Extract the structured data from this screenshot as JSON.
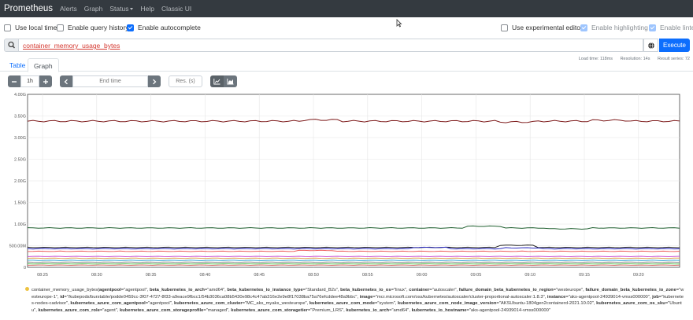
{
  "nav": {
    "brand": "Prometheus",
    "items": [
      "Alerts",
      "Graph",
      "Status",
      "Help",
      "Classic UI"
    ]
  },
  "options": {
    "use_local_time": {
      "label": "Use local time",
      "checked": false
    },
    "query_history": {
      "label": "Enable query history",
      "checked": false
    },
    "autocomplete": {
      "label": "Enable autocomplete",
      "checked": true
    },
    "experimental_editor": {
      "label": "Use experimental editor",
      "checked": false
    },
    "highlighting": {
      "label": "Enable highlighting",
      "checked": true
    },
    "linter": {
      "label": "Enable linter",
      "checked": true
    }
  },
  "query": {
    "value": "container_memory_usage_bytes",
    "execute_label": "Execute"
  },
  "stats": {
    "load_time": "Load time: 118ms",
    "resolution": "Resolution: 14s",
    "result_series": "Result series: 72"
  },
  "tabs": {
    "table": "Table",
    "graph": "Graph"
  },
  "controls": {
    "range": "1h",
    "end_time_placeholder": "End time",
    "resolution_placeholder": "Res. (s)"
  },
  "chart_data": {
    "type": "line",
    "x": [
      "08:25",
      "08:30",
      "08:35",
      "08:40",
      "08:45",
      "08:50",
      "08:55",
      "09:00",
      "09:05",
      "09:10",
      "09:15",
      "09:20"
    ],
    "y_ticks": [
      "0",
      "500.00M",
      "1.00G",
      "1.50G",
      "2.00G",
      "2.50G",
      "3.00G",
      "3.50G",
      "4.00G"
    ],
    "ylim": [
      0,
      4.0
    ],
    "y_unit": "G",
    "grid": true,
    "series": [
      {
        "color": "#7d1a1a",
        "level": 3.38,
        "bumps": [
          [
            0.42,
            0.03
          ],
          [
            0.72,
            -0.02
          ],
          [
            0.86,
            0.02
          ]
        ]
      },
      {
        "color": "#1f5f2f",
        "level": 0.91,
        "bumps": [
          [
            0.67,
            0.04
          ],
          [
            0.8,
            -0.02
          ]
        ]
      },
      {
        "color": "#222222",
        "level": 0.46,
        "bumps": [
          [
            0.72,
            0.05
          ]
        ]
      },
      {
        "color": "#2b2bbf",
        "level": 0.43,
        "bumps": [
          [
            0.59,
            0.03
          ],
          [
            0.73,
            0.02
          ]
        ]
      },
      {
        "color": "#ee5a5a",
        "level": 0.37,
        "bumps": [
          [
            0.41,
            0.02
          ]
        ]
      },
      {
        "color": "#c94bd1",
        "level": 0.25,
        "bumps": []
      },
      {
        "color": "#e0a050",
        "level": 0.21,
        "bumps": []
      },
      {
        "color": "#4bb0d9",
        "level": 0.16,
        "bumps": []
      },
      {
        "color": "#8a8a8a",
        "level": 0.12,
        "bumps": []
      },
      {
        "color": "#5cc55c",
        "level": 0.08,
        "bumps": []
      },
      {
        "color": "#d66f6f",
        "level": 0.05,
        "bumps": []
      }
    ]
  },
  "legend": {
    "swatch_color": "#edc240",
    "metric": "container_memory_usage_bytes",
    "labels": [
      [
        "agentpool",
        "agentpool"
      ],
      [
        "beta_kubernetes_io_arch",
        "amd64"
      ],
      [
        "beta_kubernetes_io_instance_type",
        "Standard_B2s"
      ],
      [
        "beta_kubernetes_io_os",
        "linux"
      ],
      [
        "container",
        "autoscaler"
      ],
      [
        "failure_domain_beta_kubernetes_io_region",
        "westeurope"
      ],
      [
        "failure_domain_beta_kubernetes_io_zone",
        "westeurope-1"
      ],
      [
        "id",
        "/kubepods/burstable/podde0459cc-3f07-4727-8f33-a9eace9fbcc1/54b3036ca08b5430e98c4c47ab316e2e9e8f17038ba75a76efcddee48a9bbc"
      ],
      [
        "image",
        "mcr.microsoft.com/oss/kubernetes/autoscaler/cluster-proportional-autoscaler:1.8.3"
      ],
      [
        "instance",
        "aks-agentpool-24939014-vmss000000"
      ],
      [
        "job",
        "kubernetes-nodes-cadvisor"
      ],
      [
        "kubernetes_azure_com_agentpool",
        "agentpool"
      ],
      [
        "kubernetes_azure_com_cluster",
        "MC_aks_myaks_westeurope"
      ],
      [
        "kubernetes_azure_com_mode",
        "system"
      ],
      [
        "kubernetes_azure_com_node_image_version",
        "AKSUbuntu-1804gen2containerd-2021.10.02"
      ],
      [
        "kubernetes_azure_com_os_sku",
        "Ubuntu"
      ],
      [
        "kubernetes_azure_com_role",
        "agent"
      ],
      [
        "kubernetes_azure_com_storageprofile",
        "managed"
      ],
      [
        "kubernetes_azure_com_storagetier",
        "Premium_LRS"
      ],
      [
        "kubernetes_io_arch",
        "amd64"
      ],
      [
        "kubernetes_io_hostname",
        "aks-agentpool-24939014-vmss000000"
      ]
    ]
  }
}
